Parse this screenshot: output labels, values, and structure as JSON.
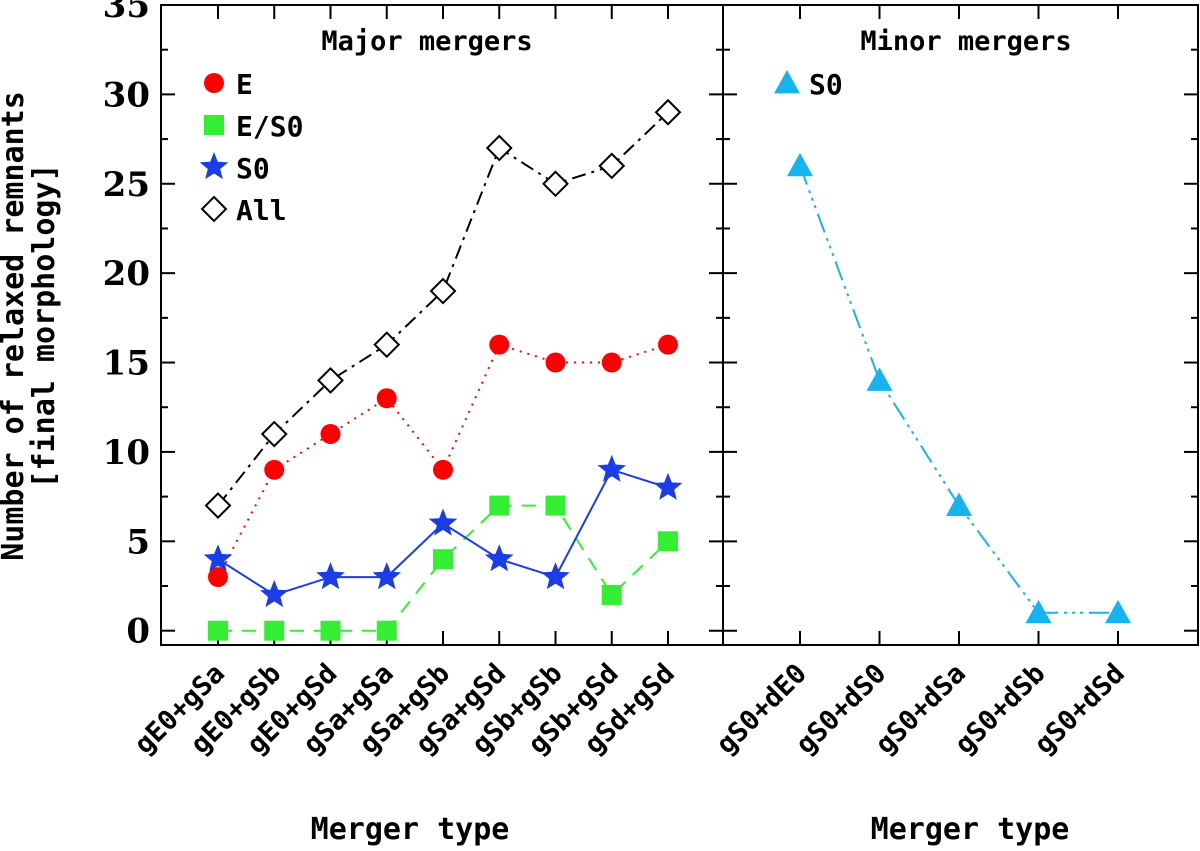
{
  "chart_data": {
    "type": "line",
    "ylabel_line1": "Number of relaxed remnants",
    "ylabel_line2": "[final morphology]",
    "ylim": [
      -0.8,
      35
    ],
    "yticks": [
      0,
      5,
      10,
      15,
      20,
      25,
      30,
      35
    ],
    "yticks_minor": [
      2.5,
      7.5,
      12.5,
      17.5,
      22.5,
      27.5,
      32.5
    ],
    "panels": [
      {
        "title": "Major mergers",
        "xlabel": "Merger type",
        "categories": [
          "gE0+gSa",
          "gE0+gSb",
          "gE0+gSd",
          "gSa+gSa",
          "gSa+gSb",
          "gSa+gSd",
          "gSb+gSb",
          "gSb+gSd",
          "gSd+gSd"
        ],
        "series": [
          {
            "name": "E",
            "marker": "circle",
            "color": "#ff0000",
            "line": "dotted",
            "values": [
              3,
              9,
              11,
              13,
              9,
              16,
              15,
              15,
              16
            ]
          },
          {
            "name": "E/S0",
            "marker": "square",
            "color": "#33ee33",
            "line": "dashed",
            "values": [
              0,
              0,
              0,
              0,
              4,
              7,
              7,
              2,
              5
            ]
          },
          {
            "name": "S0",
            "marker": "star",
            "color": "#1a3de6",
            "line": "solid",
            "values": [
              4,
              2,
              3,
              3,
              6,
              4,
              3,
              9,
              8
            ]
          },
          {
            "name": "All",
            "marker": "diamond",
            "color": "#000000",
            "line": "dashdot",
            "values": [
              7,
              11,
              14,
              16,
              19,
              27,
              25,
              26,
              29
            ]
          }
        ]
      },
      {
        "title": "Minor mergers",
        "xlabel": "Merger type",
        "categories": [
          "gS0+dE0",
          "gS0+dS0",
          "gS0+dSa",
          "gS0+dSb",
          "gS0+dSd"
        ],
        "series": [
          {
            "name": "S0",
            "marker": "triangle",
            "color": "#16b4ee",
            "line": "dashdotdotdot",
            "values": [
              26,
              14,
              7,
              1,
              1
            ]
          }
        ]
      }
    ]
  }
}
